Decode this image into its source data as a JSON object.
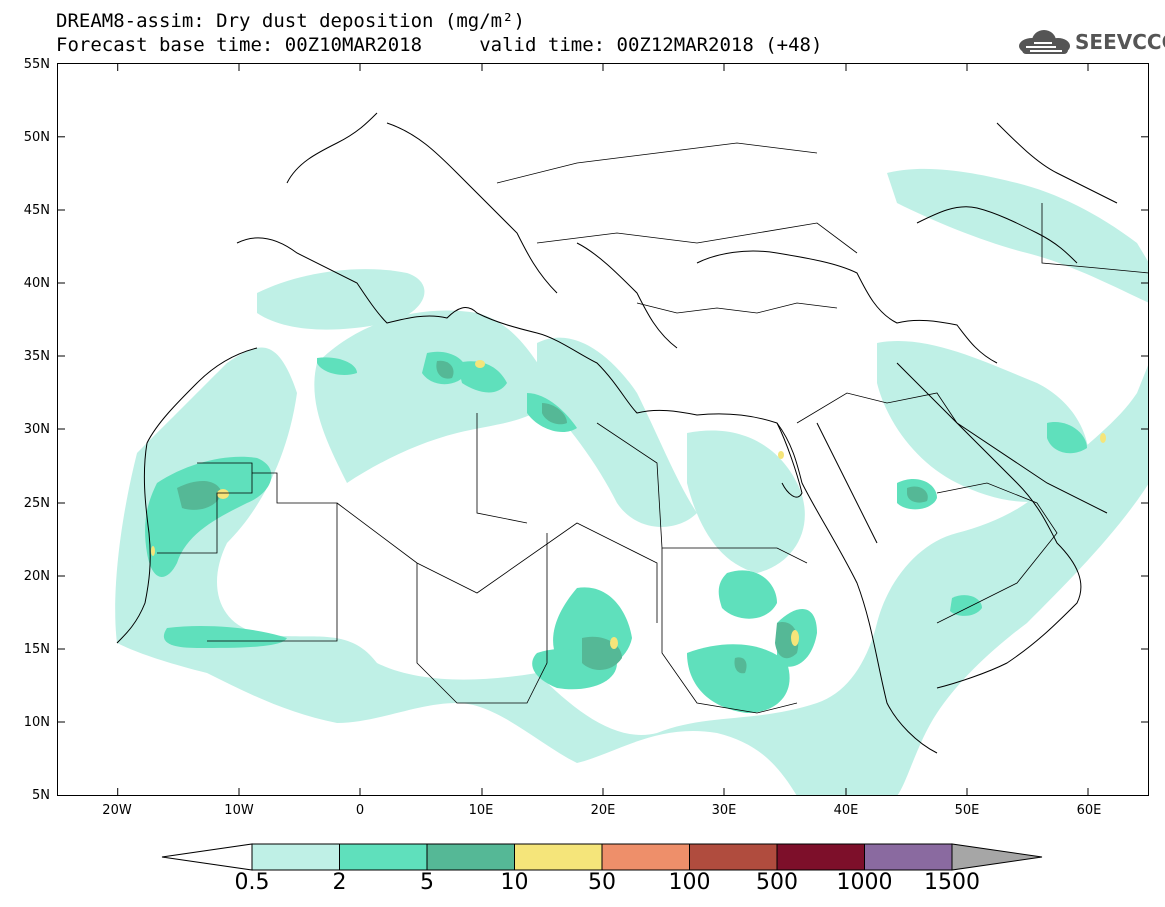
{
  "header": {
    "title_line1": "DREAM8-assim: Dry dust deposition (mg/m²)",
    "title_line2": "Forecast base time: 00Z10MAR2018     valid time: 00Z12MAR2018 (+48)",
    "logo_text": "SEEVCCC"
  },
  "axes": {
    "lat_labels": [
      "55N",
      "50N",
      "45N",
      "40N",
      "35N",
      "30N",
      "25N",
      "20N",
      "15N",
      "10N",
      "5N"
    ],
    "lon_labels": [
      "20W",
      "10W",
      "0",
      "10E",
      "20E",
      "30E",
      "40E",
      "50E",
      "60E"
    ]
  },
  "colorbar": {
    "labels": [
      "0.5",
      "2",
      "5",
      "10",
      "50",
      "100",
      "500",
      "1000",
      "1500"
    ],
    "colors": [
      "#bff0e6",
      "#5fe0bc",
      "#55b896",
      "#f5e57a",
      "#ee8f6a",
      "#b04c3e",
      "#7d0f2a",
      "#8a6aa0"
    ],
    "under_color": "#ffffff",
    "over_color": "#a6a6a6"
  },
  "map": {
    "region": "North Africa and Middle East",
    "projection": "lat-lon",
    "lon_range": [
      -25,
      65
    ],
    "lat_range": [
      5,
      55
    ],
    "variable": "Dry dust deposition",
    "units": "mg/m²"
  }
}
